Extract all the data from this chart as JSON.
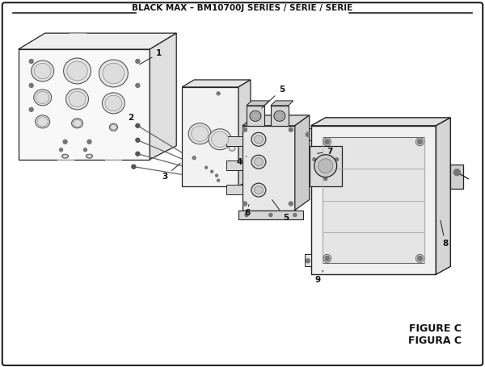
{
  "title": "BLACK MAX – BM10700J SERIES / SÉRIE / SERIE",
  "figure_label": "FIGURE C",
  "figura_label": "FIGURA C",
  "bg_color": "#ffffff",
  "lc": "#222222",
  "fill_light": "#f5f5f5",
  "fill_mid": "#e8e8e8",
  "fill_dark": "#d5d5d5"
}
